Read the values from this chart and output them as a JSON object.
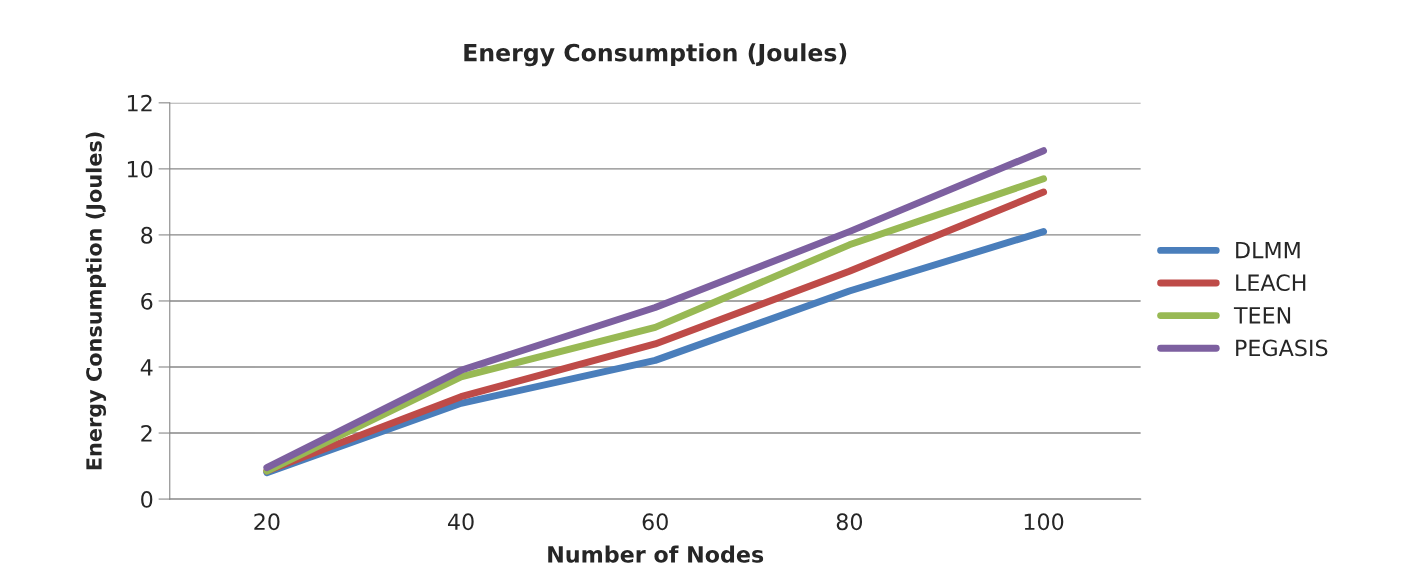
{
  "chart_data": {
    "type": "line",
    "title": "Energy Consumption (Joules)",
    "xlabel": "Number of Nodes",
    "ylabel": "Energy Consumption (Joules)",
    "categories": [
      "20",
      "40",
      "60",
      "80",
      "100"
    ],
    "series": [
      {
        "name": "DLMM",
        "color": "#4a7ebb",
        "values": [
          0.8,
          2.9,
          4.2,
          6.3,
          8.1
        ]
      },
      {
        "name": "LEACH",
        "color": "#be4b48",
        "values": [
          0.85,
          3.1,
          4.7,
          6.9,
          9.3
        ]
      },
      {
        "name": "TEEN",
        "color": "#98b954",
        "values": [
          0.85,
          3.7,
          5.2,
          7.7,
          9.7
        ]
      },
      {
        "name": "PEGASIS",
        "color": "#7d60a0",
        "values": [
          0.95,
          3.9,
          5.8,
          8.1,
          10.55
        ]
      }
    ],
    "ylim": [
      0,
      12
    ],
    "yticks": [
      0,
      2,
      4,
      6,
      8,
      10,
      12
    ],
    "grid": "y",
    "legend": "right",
    "marker": "none",
    "line_style": "solid"
  }
}
